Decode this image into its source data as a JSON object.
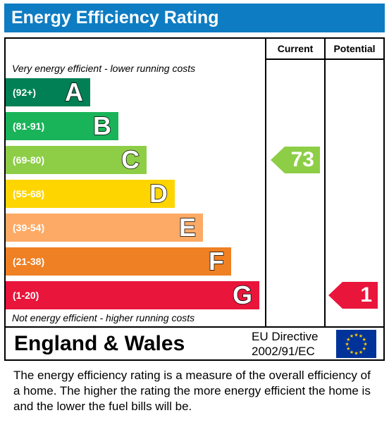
{
  "title": "Energy Efficiency Rating",
  "columns": {
    "current": "Current",
    "potential": "Potential"
  },
  "top_note": "Very energy efficient - lower running costs",
  "bottom_note": "Not energy efficient - higher running costs",
  "chart_data": {
    "type": "bar",
    "categories": [
      "A",
      "B",
      "C",
      "D",
      "E",
      "F",
      "G"
    ],
    "bands": [
      {
        "letter": "A",
        "range": "(92+)",
        "color": "#008054"
      },
      {
        "letter": "B",
        "range": "(81-91)",
        "color": "#19b459"
      },
      {
        "letter": "C",
        "range": "(69-80)",
        "color": "#8dce46"
      },
      {
        "letter": "D",
        "range": "(55-68)",
        "color": "#ffd500"
      },
      {
        "letter": "E",
        "range": "(39-54)",
        "color": "#fcaa65"
      },
      {
        "letter": "F",
        "range": "(21-38)",
        "color": "#ef8023"
      },
      {
        "letter": "G",
        "range": "(1-20)",
        "color": "#e9153b"
      }
    ],
    "current": {
      "value": 73,
      "band": "C",
      "label": "73",
      "color": "#8dce46"
    },
    "potential": {
      "value": 1,
      "band": "G",
      "label": "1",
      "color": "#e9153b"
    }
  },
  "footer": {
    "region": "England & Wales",
    "directive_line1": "EU Directive",
    "directive_line2": "2002/91/EC",
    "flag_icon": "eu-flag-icon"
  },
  "caption": "The energy efficiency rating is a measure of the overall efficiency of a home.  The higher the rating the more energy efficient the home is and the lower the fuel bills will be."
}
